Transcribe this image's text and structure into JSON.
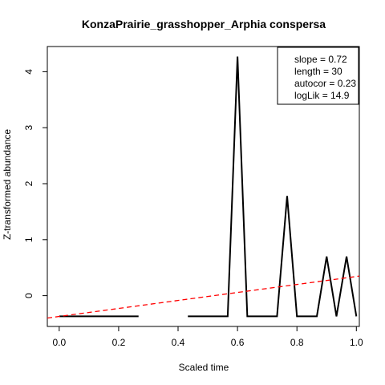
{
  "chart_data": {
    "type": "line",
    "title": "KonzaPrairie_grasshopper_Arphia conspersa",
    "xlabel": "Scaled time",
    "ylabel": "Z-transformed abundance",
    "xlim": [
      -0.04,
      1.01
    ],
    "ylim": [
      -0.55,
      4.45
    ],
    "x_ticks": [
      0.0,
      0.2,
      0.4,
      0.6,
      0.8,
      1.0
    ],
    "x_tick_labels": [
      "0.0",
      "0.2",
      "0.4",
      "0.6",
      "0.8",
      "1.0"
    ],
    "y_ticks": [
      0,
      1,
      2,
      3,
      4
    ],
    "y_tick_labels": [
      "0",
      "1",
      "2",
      "3",
      "4"
    ],
    "grid": false,
    "series": [
      {
        "color": "#000000",
        "style": "solid",
        "x": [
          0.0,
          0.033,
          0.067,
          0.1,
          0.133,
          0.167,
          0.2,
          0.233,
          0.267,
          0.3,
          0.333,
          0.367,
          0.4,
          0.433,
          0.467,
          0.5,
          0.533,
          0.567,
          0.6,
          0.633,
          0.667,
          0.7,
          0.733,
          0.767,
          0.8,
          0.833,
          0.867,
          0.9,
          0.933,
          0.967,
          1.0
        ],
        "y": [
          -0.37,
          -0.37,
          -0.37,
          -0.37,
          -0.37,
          -0.37,
          -0.37,
          -0.37,
          -0.37,
          null,
          null,
          null,
          null,
          -0.37,
          -0.37,
          -0.37,
          -0.37,
          -0.37,
          4.27,
          -0.37,
          -0.37,
          -0.37,
          -0.37,
          1.78,
          -0.37,
          -0.37,
          -0.37,
          0.7,
          -0.37,
          0.7,
          -0.37
        ]
      }
    ],
    "trend_line": {
      "color": "#ff0000",
      "style": "dashed",
      "x": [
        -0.04,
        1.01
      ],
      "y": [
        -0.4,
        0.35
      ]
    },
    "legend": {
      "position": "top-right",
      "entries": [
        "slope = 0.72",
        "length = 30",
        "autocor = 0.23",
        "logLik = 14.9"
      ]
    }
  }
}
